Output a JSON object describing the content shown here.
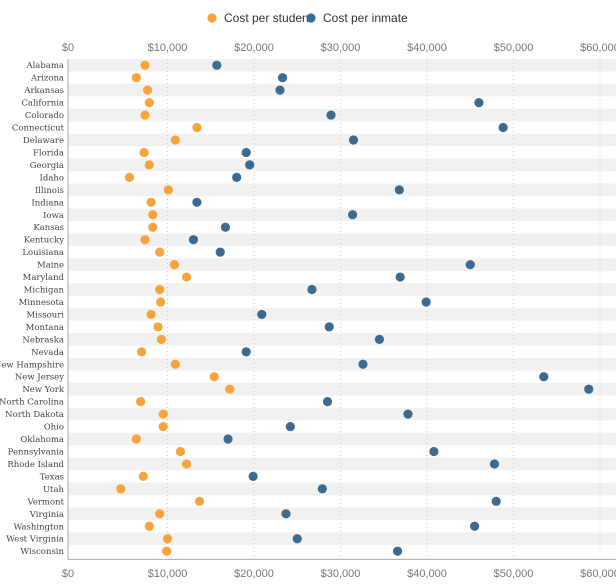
{
  "chart_data": {
    "type": "scatter",
    "subtype": "dot-plot",
    "title": "",
    "xlabel": "",
    "ylabel": "",
    "xlim": [
      0,
      60000
    ],
    "x_ticks": [
      "$0",
      "$10,000",
      "$20,000",
      "$30,000",
      "$40,000",
      "$50,000",
      "$60,000"
    ],
    "x_tick_values": [
      0,
      10000,
      20000,
      30000,
      40000,
      50000,
      60000
    ],
    "grid": "vertical dotted",
    "legend_position": "top-center",
    "categories": [
      "Alabama",
      "Arizona",
      "Arkansas",
      "California",
      "Colorado",
      "Connecticut",
      "Delaware",
      "Florida",
      "Georgia",
      "Idaho",
      "Illinois",
      "Indiana",
      "Iowa",
      "Kansas",
      "Kentucky",
      "Louisiana",
      "Maine",
      "Maryland",
      "Michigan",
      "Minnesota",
      "Missouri",
      "Montana",
      "Nebraska",
      "Nevada",
      "New Hampshire",
      "New Jersey",
      "New York",
      "North Carolina",
      "North Dakota",
      "Ohio",
      "Oklahoma",
      "Pennsylvania",
      "Rhode Island",
      "Texas",
      "Utah",
      "Vermont",
      "Virginia",
      "Washington",
      "West Virginia",
      "Wisconsin"
    ],
    "series": [
      {
        "name": "Cost per student",
        "color": "#f9a33a",
        "values": [
          7400,
          6400,
          7700,
          7900,
          7400,
          13400,
          10900,
          7300,
          7900,
          5600,
          10100,
          8100,
          8300,
          8300,
          7400,
          9100,
          10800,
          12200,
          9100,
          9200,
          8100,
          8900,
          9300,
          7000,
          10900,
          15400,
          17200,
          6900,
          9500,
          9500,
          6400,
          11500,
          12200,
          7200,
          4600,
          13700,
          9100,
          7900,
          10000,
          9900
        ]
      },
      {
        "name": "Cost per inmate",
        "color": "#3d6a8f",
        "values": [
          15700,
          23300,
          23000,
          46000,
          28900,
          48800,
          31500,
          19100,
          19500,
          18000,
          36800,
          13400,
          31400,
          16700,
          13000,
          16100,
          45000,
          36900,
          26700,
          39900,
          20900,
          28700,
          34500,
          19100,
          32600,
          53500,
          58700,
          28500,
          37800,
          24200,
          17000,
          40800,
          47800,
          19900,
          27900,
          48000,
          23700,
          45500,
          25000,
          36600
        ]
      }
    ]
  }
}
